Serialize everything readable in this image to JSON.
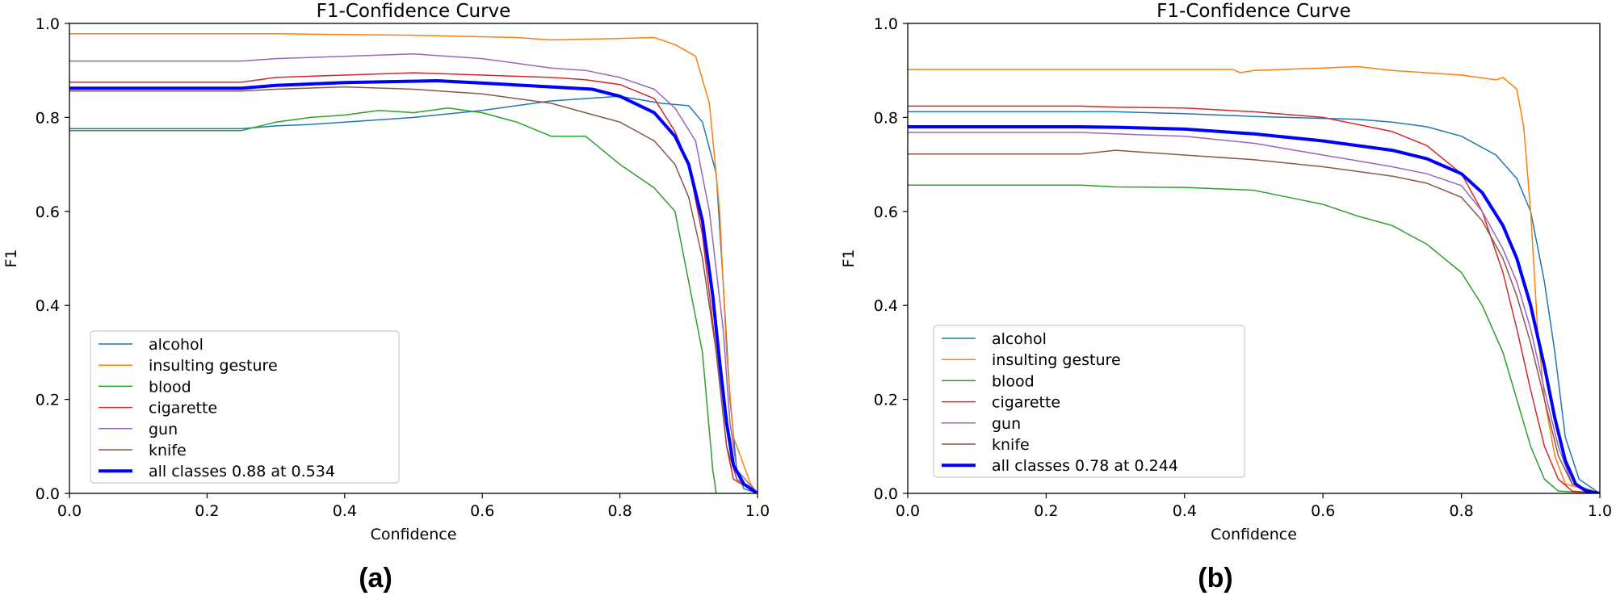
{
  "chart_data": [
    {
      "type": "line",
      "panel_label": "(a)",
      "title": "F1-Confidence Curve",
      "xlabel": "Confidence",
      "ylabel": "F1",
      "xlim": [
        0,
        1
      ],
      "ylim": [
        0,
        1
      ],
      "xticks": [
        "0.0",
        "0.2",
        "0.4",
        "0.6",
        "0.8",
        "1.0"
      ],
      "yticks": [
        "0.0",
        "0.2",
        "0.4",
        "0.6",
        "0.8",
        "1.0"
      ],
      "legend_position": "lower-left",
      "series": [
        {
          "name": "alcohol",
          "color": "#1f77b4",
          "width": 1.5,
          "points": [
            [
              0,
              0.776
            ],
            [
              0.25,
              0.776
            ],
            [
              0.3,
              0.782
            ],
            [
              0.35,
              0.785
            ],
            [
              0.4,
              0.79
            ],
            [
              0.5,
              0.8
            ],
            [
              0.6,
              0.815
            ],
            [
              0.7,
              0.835
            ],
            [
              0.8,
              0.845
            ],
            [
              0.86,
              0.83
            ],
            [
              0.9,
              0.825
            ],
            [
              0.92,
              0.79
            ],
            [
              0.94,
              0.68
            ],
            [
              0.95,
              0.45
            ],
            [
              0.96,
              0.2
            ],
            [
              0.97,
              0.05
            ],
            [
              0.98,
              0.01
            ],
            [
              1.0,
              0
            ]
          ]
        },
        {
          "name": "insulting gesture",
          "color": "#ff7f0e",
          "width": 1.5,
          "points": [
            [
              0,
              0.978
            ],
            [
              0.3,
              0.978
            ],
            [
              0.5,
              0.975
            ],
            [
              0.65,
              0.97
            ],
            [
              0.7,
              0.965
            ],
            [
              0.8,
              0.968
            ],
            [
              0.85,
              0.97
            ],
            [
              0.88,
              0.955
            ],
            [
              0.91,
              0.93
            ],
            [
              0.93,
              0.83
            ],
            [
              0.945,
              0.6
            ],
            [
              0.955,
              0.3
            ],
            [
              0.965,
              0.12
            ],
            [
              0.98,
              0.06
            ],
            [
              0.99,
              0.02
            ],
            [
              1.0,
              0
            ]
          ]
        },
        {
          "name": "blood",
          "color": "#2ca02c",
          "width": 1.5,
          "points": [
            [
              0,
              0.772
            ],
            [
              0.25,
              0.772
            ],
            [
              0.3,
              0.79
            ],
            [
              0.35,
              0.8
            ],
            [
              0.4,
              0.805
            ],
            [
              0.45,
              0.815
            ],
            [
              0.5,
              0.81
            ],
            [
              0.55,
              0.82
            ],
            [
              0.6,
              0.81
            ],
            [
              0.65,
              0.79
            ],
            [
              0.7,
              0.76
            ],
            [
              0.75,
              0.76
            ],
            [
              0.8,
              0.7
            ],
            [
              0.85,
              0.65
            ],
            [
              0.88,
              0.6
            ],
            [
              0.9,
              0.45
            ],
            [
              0.92,
              0.3
            ],
            [
              0.935,
              0.05
            ],
            [
              0.94,
              0
            ]
          ]
        },
        {
          "name": "cigarette",
          "color": "#d62728",
          "width": 1.5,
          "points": [
            [
              0,
              0.875
            ],
            [
              0.25,
              0.875
            ],
            [
              0.3,
              0.885
            ],
            [
              0.4,
              0.89
            ],
            [
              0.5,
              0.895
            ],
            [
              0.6,
              0.89
            ],
            [
              0.7,
              0.885
            ],
            [
              0.75,
              0.88
            ],
            [
              0.8,
              0.87
            ],
            [
              0.85,
              0.84
            ],
            [
              0.88,
              0.77
            ],
            [
              0.9,
              0.7
            ],
            [
              0.92,
              0.55
            ],
            [
              0.94,
              0.3
            ],
            [
              0.955,
              0.1
            ],
            [
              0.965,
              0.03
            ],
            [
              1.0,
              0
            ]
          ]
        },
        {
          "name": "gun",
          "color": "#9467bd",
          "width": 1.5,
          "points": [
            [
              0,
              0.92
            ],
            [
              0.25,
              0.92
            ],
            [
              0.3,
              0.925
            ],
            [
              0.4,
              0.93
            ],
            [
              0.5,
              0.935
            ],
            [
              0.6,
              0.925
            ],
            [
              0.7,
              0.905
            ],
            [
              0.75,
              0.9
            ],
            [
              0.8,
              0.885
            ],
            [
              0.85,
              0.86
            ],
            [
              0.88,
              0.82
            ],
            [
              0.91,
              0.75
            ],
            [
              0.93,
              0.6
            ],
            [
              0.95,
              0.35
            ],
            [
              0.96,
              0.15
            ],
            [
              0.97,
              0.05
            ],
            [
              1.0,
              0
            ]
          ]
        },
        {
          "name": "knife",
          "color": "#8c564b",
          "width": 1.5,
          "points": [
            [
              0,
              0.856
            ],
            [
              0.25,
              0.856
            ],
            [
              0.3,
              0.86
            ],
            [
              0.4,
              0.865
            ],
            [
              0.5,
              0.86
            ],
            [
              0.6,
              0.85
            ],
            [
              0.7,
              0.83
            ],
            [
              0.75,
              0.81
            ],
            [
              0.8,
              0.79
            ],
            [
              0.85,
              0.75
            ],
            [
              0.88,
              0.7
            ],
            [
              0.9,
              0.63
            ],
            [
              0.92,
              0.5
            ],
            [
              0.94,
              0.3
            ],
            [
              0.955,
              0.1
            ],
            [
              0.97,
              0.03
            ],
            [
              1.0,
              0
            ]
          ]
        },
        {
          "name": "all classes 0.88 at 0.534",
          "color": "#0000ff",
          "width": 4,
          "points": [
            [
              0,
              0.862
            ],
            [
              0.25,
              0.862
            ],
            [
              0.3,
              0.868
            ],
            [
              0.4,
              0.874
            ],
            [
              0.5,
              0.877
            ],
            [
              0.534,
              0.878
            ],
            [
              0.6,
              0.873
            ],
            [
              0.7,
              0.865
            ],
            [
              0.76,
              0.86
            ],
            [
              0.8,
              0.845
            ],
            [
              0.85,
              0.81
            ],
            [
              0.88,
              0.76
            ],
            [
              0.9,
              0.7
            ],
            [
              0.92,
              0.58
            ],
            [
              0.935,
              0.42
            ],
            [
              0.945,
              0.28
            ],
            [
              0.955,
              0.15
            ],
            [
              0.965,
              0.06
            ],
            [
              0.98,
              0.02
            ],
            [
              1.0,
              0
            ]
          ]
        }
      ]
    },
    {
      "type": "line",
      "panel_label": "(b)",
      "title": "F1-Confidence Curve",
      "xlabel": "Confidence",
      "ylabel": "F1",
      "xlim": [
        0,
        1
      ],
      "ylim": [
        0,
        1
      ],
      "xticks": [
        "0.0",
        "0.2",
        "0.4",
        "0.6",
        "0.8",
        "1.0"
      ],
      "yticks": [
        "0.0",
        "0.2",
        "0.4",
        "0.6",
        "0.8",
        "1.0"
      ],
      "legend_position": "lower-left",
      "series": [
        {
          "name": "alcohol",
          "color": "#1f77b4",
          "width": 1.5,
          "points": [
            [
              0,
              0.812
            ],
            [
              0.3,
              0.812
            ],
            [
              0.4,
              0.808
            ],
            [
              0.5,
              0.802
            ],
            [
              0.6,
              0.798
            ],
            [
              0.65,
              0.796
            ],
            [
              0.7,
              0.79
            ],
            [
              0.75,
              0.78
            ],
            [
              0.8,
              0.76
            ],
            [
              0.85,
              0.72
            ],
            [
              0.88,
              0.67
            ],
            [
              0.9,
              0.6
            ],
            [
              0.92,
              0.45
            ],
            [
              0.935,
              0.3
            ],
            [
              0.95,
              0.12
            ],
            [
              0.97,
              0.03
            ],
            [
              1.0,
              0
            ]
          ]
        },
        {
          "name": "insulting gesture",
          "color": "#ff7f0e",
          "width": 1.5,
          "points": [
            [
              0,
              0.902
            ],
            [
              0.3,
              0.902
            ],
            [
              0.47,
              0.902
            ],
            [
              0.48,
              0.895
            ],
            [
              0.5,
              0.9
            ],
            [
              0.6,
              0.905
            ],
            [
              0.65,
              0.908
            ],
            [
              0.7,
              0.9
            ],
            [
              0.8,
              0.89
            ],
            [
              0.85,
              0.88
            ],
            [
              0.86,
              0.885
            ],
            [
              0.88,
              0.86
            ],
            [
              0.89,
              0.78
            ],
            [
              0.9,
              0.6
            ],
            [
              0.91,
              0.35
            ],
            [
              0.92,
              0.2
            ],
            [
              0.935,
              0.08
            ],
            [
              0.95,
              0.02
            ],
            [
              1.0,
              0
            ]
          ]
        },
        {
          "name": "blood",
          "color": "#2ca02c",
          "width": 1.5,
          "points": [
            [
              0,
              0.656
            ],
            [
              0.25,
              0.656
            ],
            [
              0.3,
              0.652
            ],
            [
              0.4,
              0.651
            ],
            [
              0.5,
              0.645
            ],
            [
              0.55,
              0.63
            ],
            [
              0.6,
              0.615
            ],
            [
              0.65,
              0.59
            ],
            [
              0.7,
              0.57
            ],
            [
              0.75,
              0.53
            ],
            [
              0.8,
              0.47
            ],
            [
              0.83,
              0.4
            ],
            [
              0.86,
              0.3
            ],
            [
              0.88,
              0.2
            ],
            [
              0.9,
              0.1
            ],
            [
              0.92,
              0.03
            ],
            [
              0.94,
              0.005
            ],
            [
              1.0,
              0
            ]
          ]
        },
        {
          "name": "cigarette",
          "color": "#d62728",
          "width": 1.5,
          "points": [
            [
              0,
              0.824
            ],
            [
              0.25,
              0.824
            ],
            [
              0.3,
              0.822
            ],
            [
              0.4,
              0.82
            ],
            [
              0.5,
              0.812
            ],
            [
              0.6,
              0.8
            ],
            [
              0.7,
              0.77
            ],
            [
              0.75,
              0.74
            ],
            [
              0.8,
              0.68
            ],
            [
              0.83,
              0.6
            ],
            [
              0.86,
              0.47
            ],
            [
              0.88,
              0.35
            ],
            [
              0.9,
              0.22
            ],
            [
              0.92,
              0.1
            ],
            [
              0.94,
              0.03
            ],
            [
              0.96,
              0.005
            ],
            [
              1.0,
              0
            ]
          ]
        },
        {
          "name": "gun",
          "color": "#9467bd",
          "width": 1.5,
          "points": [
            [
              0,
              0.768
            ],
            [
              0.25,
              0.768
            ],
            [
              0.3,
              0.765
            ],
            [
              0.4,
              0.76
            ],
            [
              0.5,
              0.745
            ],
            [
              0.6,
              0.72
            ],
            [
              0.7,
              0.695
            ],
            [
              0.75,
              0.68
            ],
            [
              0.8,
              0.655
            ],
            [
              0.83,
              0.6
            ],
            [
              0.86,
              0.52
            ],
            [
              0.88,
              0.45
            ],
            [
              0.9,
              0.35
            ],
            [
              0.92,
              0.22
            ],
            [
              0.94,
              0.1
            ],
            [
              0.96,
              0.02
            ],
            [
              1.0,
              0
            ]
          ]
        },
        {
          "name": "knife",
          "color": "#8c564b",
          "width": 1.5,
          "points": [
            [
              0,
              0.722
            ],
            [
              0.25,
              0.722
            ],
            [
              0.3,
              0.73
            ],
            [
              0.4,
              0.72
            ],
            [
              0.5,
              0.71
            ],
            [
              0.6,
              0.695
            ],
            [
              0.7,
              0.675
            ],
            [
              0.75,
              0.66
            ],
            [
              0.8,
              0.63
            ],
            [
              0.83,
              0.58
            ],
            [
              0.86,
              0.5
            ],
            [
              0.88,
              0.42
            ],
            [
              0.9,
              0.32
            ],
            [
              0.92,
              0.2
            ],
            [
              0.94,
              0.08
            ],
            [
              0.96,
              0.02
            ],
            [
              1.0,
              0
            ]
          ]
        },
        {
          "name": "all classes 0.78 at 0.244",
          "color": "#0000ff",
          "width": 4,
          "points": [
            [
              0,
              0.78
            ],
            [
              0.244,
              0.78
            ],
            [
              0.3,
              0.779
            ],
            [
              0.4,
              0.775
            ],
            [
              0.5,
              0.765
            ],
            [
              0.6,
              0.75
            ],
            [
              0.7,
              0.73
            ],
            [
              0.75,
              0.712
            ],
            [
              0.8,
              0.68
            ],
            [
              0.83,
              0.64
            ],
            [
              0.86,
              0.57
            ],
            [
              0.88,
              0.5
            ],
            [
              0.9,
              0.4
            ],
            [
              0.92,
              0.27
            ],
            [
              0.935,
              0.16
            ],
            [
              0.95,
              0.07
            ],
            [
              0.965,
              0.02
            ],
            [
              0.98,
              0.005
            ],
            [
              1.0,
              0
            ]
          ]
        }
      ]
    }
  ]
}
